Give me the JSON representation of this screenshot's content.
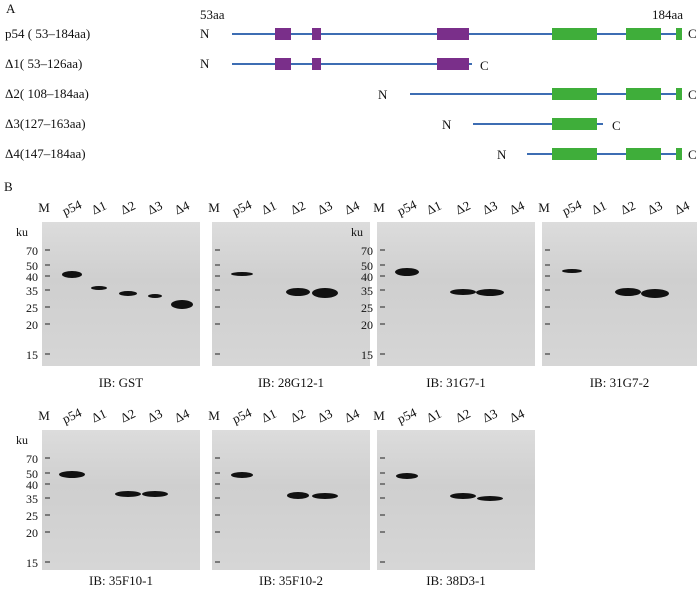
{
  "panel_a": {
    "letter": "A",
    "start_label": "53aa",
    "end_label": "184aa",
    "rows": [
      {
        "label": "p54 ( 53–184aa)",
        "n": "N",
        "c": "C"
      },
      {
        "label": "Δ1( 53–126aa)",
        "n": "N",
        "c": "C"
      },
      {
        "label": "Δ2( 108–184aa)",
        "n": "N",
        "c": "C"
      },
      {
        "label": "Δ3(127–163aa)",
        "n": "N",
        "c": "C"
      },
      {
        "label": "Δ4(147–184aa)",
        "n": "N",
        "c": "C"
      }
    ]
  },
  "panel_b": {
    "letter": "B",
    "marker_unit": "ku",
    "marker_values": [
      "70",
      "50",
      "40",
      "35",
      "25",
      "20",
      "15"
    ],
    "lanes": [
      "M",
      "p54",
      "Δ1",
      "Δ2",
      "Δ3",
      "Δ4"
    ],
    "blots": [
      {
        "caption": "IB: GST"
      },
      {
        "caption": "IB: 28G12-1"
      },
      {
        "caption": "IB: 31G7-1"
      },
      {
        "caption": "IB: 31G7-2"
      },
      {
        "caption": "IB: 35F10-1"
      },
      {
        "caption": "IB: 35F10-2"
      },
      {
        "caption": "IB: 38D3-1"
      }
    ]
  },
  "colors": {
    "backbone": "#3d6db3",
    "domain_purple": "#7a2f8a",
    "domain_green": "#3fae3a"
  }
}
